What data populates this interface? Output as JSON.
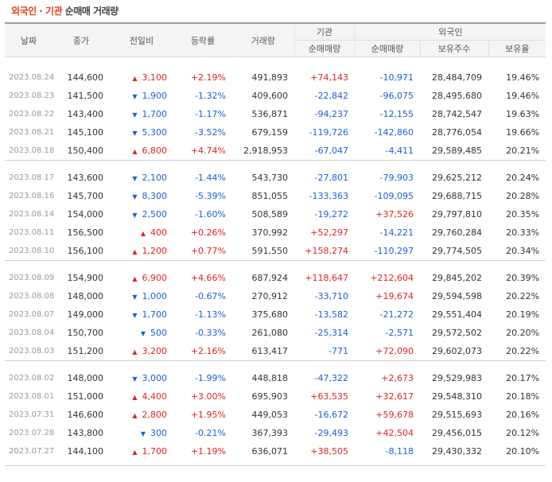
{
  "header": {
    "title_part1": "외국인 · 기관",
    "title_part2": " 순매매 거래량"
  },
  "columns": {
    "date": "날짜",
    "close": "종가",
    "change": "전일비",
    "rate": "등락률",
    "volume": "거래량",
    "inst_group": "기관",
    "inst_net": "순매매량",
    "foreign_group": "외국인",
    "foreign_net": "순매매량",
    "foreign_hold": "보유주수",
    "foreign_ratio": "보유율"
  },
  "colors": {
    "up": "#e12222",
    "down": "#1a5fd6",
    "date": "#999999",
    "header_bg": "#f4f4f4"
  },
  "groups": [
    {
      "rows": [
        {
          "date": "2023.08.24",
          "close": "144,600",
          "dir": "up",
          "change": "3,100",
          "rate": "+2.19%",
          "volume": "491,893",
          "inst": "+74,143",
          "inst_dir": "up",
          "foreign": "-10,971",
          "foreign_dir": "down",
          "hold": "28,484,709",
          "ratio": "19.46%"
        },
        {
          "date": "2023.08.23",
          "close": "141,500",
          "dir": "down",
          "change": "1,900",
          "rate": "-1.32%",
          "volume": "409,600",
          "inst": "-22,842",
          "inst_dir": "down",
          "foreign": "-96,075",
          "foreign_dir": "down",
          "hold": "28,495,680",
          "ratio": "19.46%"
        },
        {
          "date": "2023.08.22",
          "close": "143,400",
          "dir": "down",
          "change": "1,700",
          "rate": "-1.17%",
          "volume": "536,871",
          "inst": "-94,237",
          "inst_dir": "down",
          "foreign": "-12,155",
          "foreign_dir": "down",
          "hold": "28,742,547",
          "ratio": "19.63%"
        },
        {
          "date": "2023.08.21",
          "close": "145,100",
          "dir": "down",
          "change": "5,300",
          "rate": "-3.52%",
          "volume": "679,159",
          "inst": "-119,726",
          "inst_dir": "down",
          "foreign": "-142,860",
          "foreign_dir": "down",
          "hold": "28,776,054",
          "ratio": "19.66%"
        },
        {
          "date": "2023.08.18",
          "close": "150,400",
          "dir": "up",
          "change": "6,800",
          "rate": "+4.74%",
          "volume": "2,918,953",
          "inst": "-67,047",
          "inst_dir": "down",
          "foreign": "-4,411",
          "foreign_dir": "down",
          "hold": "29,589,485",
          "ratio": "20.21%"
        }
      ]
    },
    {
      "rows": [
        {
          "date": "2023.08.17",
          "close": "143,600",
          "dir": "down",
          "change": "2,100",
          "rate": "-1.44%",
          "volume": "543,730",
          "inst": "-27,801",
          "inst_dir": "down",
          "foreign": "-79,903",
          "foreign_dir": "down",
          "hold": "29,625,212",
          "ratio": "20.24%"
        },
        {
          "date": "2023.08.16",
          "close": "145,700",
          "dir": "down",
          "change": "8,300",
          "rate": "-5.39%",
          "volume": "851,055",
          "inst": "-133,363",
          "inst_dir": "down",
          "foreign": "-109,095",
          "foreign_dir": "down",
          "hold": "29,688,715",
          "ratio": "20.28%"
        },
        {
          "date": "2023.08.14",
          "close": "154,000",
          "dir": "down",
          "change": "2,500",
          "rate": "-1.60%",
          "volume": "508,589",
          "inst": "-19,272",
          "inst_dir": "down",
          "foreign": "+37,526",
          "foreign_dir": "up",
          "hold": "29,797,810",
          "ratio": "20.35%"
        },
        {
          "date": "2023.08.11",
          "close": "156,500",
          "dir": "up",
          "change": "400",
          "rate": "+0.26%",
          "volume": "370,992",
          "inst": "+52,297",
          "inst_dir": "up",
          "foreign": "-14,221",
          "foreign_dir": "down",
          "hold": "29,760,284",
          "ratio": "20.33%"
        },
        {
          "date": "2023.08.10",
          "close": "156,100",
          "dir": "up",
          "change": "1,200",
          "rate": "+0.77%",
          "volume": "591,550",
          "inst": "+158,274",
          "inst_dir": "up",
          "foreign": "-110,297",
          "foreign_dir": "down",
          "hold": "29,774,505",
          "ratio": "20.34%"
        }
      ]
    },
    {
      "rows": [
        {
          "date": "2023.08.09",
          "close": "154,900",
          "dir": "up",
          "change": "6,900",
          "rate": "+4.66%",
          "volume": "687,924",
          "inst": "+118,647",
          "inst_dir": "up",
          "foreign": "+212,604",
          "foreign_dir": "up",
          "hold": "29,845,202",
          "ratio": "20.39%"
        },
        {
          "date": "2023.08.08",
          "close": "148,000",
          "dir": "down",
          "change": "1,000",
          "rate": "-0.67%",
          "volume": "270,912",
          "inst": "-33,710",
          "inst_dir": "down",
          "foreign": "+19,674",
          "foreign_dir": "up",
          "hold": "29,594,598",
          "ratio": "20.22%"
        },
        {
          "date": "2023.08.07",
          "close": "149,000",
          "dir": "down",
          "change": "1,700",
          "rate": "-1.13%",
          "volume": "375,680",
          "inst": "-13,582",
          "inst_dir": "down",
          "foreign": "-21,272",
          "foreign_dir": "down",
          "hold": "29,551,404",
          "ratio": "20.19%"
        },
        {
          "date": "2023.08.04",
          "close": "150,700",
          "dir": "down",
          "change": "500",
          "rate": "-0.33%",
          "volume": "261,080",
          "inst": "-25,314",
          "inst_dir": "down",
          "foreign": "-2,571",
          "foreign_dir": "down",
          "hold": "29,572,502",
          "ratio": "20.20%"
        },
        {
          "date": "2023.08.03",
          "close": "151,200",
          "dir": "up",
          "change": "3,200",
          "rate": "+2.16%",
          "volume": "613,417",
          "inst": "-771",
          "inst_dir": "down",
          "foreign": "+72,090",
          "foreign_dir": "up",
          "hold": "29,602,073",
          "ratio": "20.22%"
        }
      ]
    },
    {
      "rows": [
        {
          "date": "2023.08.02",
          "close": "148,000",
          "dir": "down",
          "change": "3,000",
          "rate": "-1.99%",
          "volume": "448,818",
          "inst": "-47,322",
          "inst_dir": "down",
          "foreign": "+2,673",
          "foreign_dir": "up",
          "hold": "29,529,983",
          "ratio": "20.17%"
        },
        {
          "date": "2023.08.01",
          "close": "151,000",
          "dir": "up",
          "change": "4,400",
          "rate": "+3.00%",
          "volume": "695,903",
          "inst": "+63,535",
          "inst_dir": "up",
          "foreign": "+32,617",
          "foreign_dir": "up",
          "hold": "29,548,310",
          "ratio": "20.18%"
        },
        {
          "date": "2023.07.31",
          "close": "146,600",
          "dir": "up",
          "change": "2,800",
          "rate": "+1.95%",
          "volume": "449,053",
          "inst": "-16,672",
          "inst_dir": "down",
          "foreign": "+59,678",
          "foreign_dir": "up",
          "hold": "29,515,693",
          "ratio": "20.16%"
        },
        {
          "date": "2023.07.28",
          "close": "143,800",
          "dir": "down",
          "change": "300",
          "rate": "-0.21%",
          "volume": "367,393",
          "inst": "-29,493",
          "inst_dir": "down",
          "foreign": "+42,504",
          "foreign_dir": "up",
          "hold": "29,456,015",
          "ratio": "20.12%"
        },
        {
          "date": "2023.07.27",
          "close": "144,100",
          "dir": "up",
          "change": "1,700",
          "rate": "+1.19%",
          "volume": "636,071",
          "inst": "+38,505",
          "inst_dir": "up",
          "foreign": "-8,118",
          "foreign_dir": "down",
          "hold": "29,430,332",
          "ratio": "20.10%"
        }
      ]
    }
  ]
}
